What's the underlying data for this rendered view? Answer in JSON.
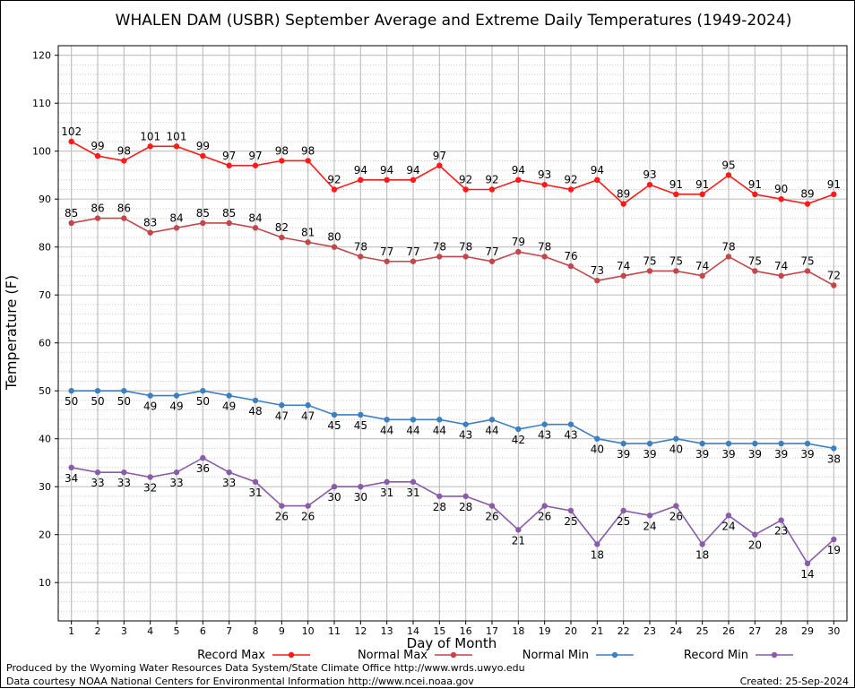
{
  "chart_data": {
    "type": "line",
    "title": "WHALEN DAM (USBR) September Average and Extreme Daily Temperatures (1949-2024)",
    "xlabel": "Day of Month",
    "ylabel": "Temperature (F)",
    "x": [
      1,
      2,
      3,
      4,
      5,
      6,
      7,
      8,
      9,
      10,
      11,
      12,
      13,
      14,
      15,
      16,
      17,
      18,
      19,
      20,
      21,
      22,
      23,
      24,
      25,
      26,
      27,
      28,
      29,
      30
    ],
    "xlim": [
      0.5,
      30.5
    ],
    "ylim": [
      2,
      122
    ],
    "yticks": [
      10,
      20,
      30,
      40,
      50,
      60,
      70,
      80,
      90,
      100,
      110,
      120
    ],
    "grid": true,
    "legend_position": "bottom",
    "series": [
      {
        "name": "Record Max",
        "color": "#ff1a1a",
        "label_pos": "above",
        "values": [
          102,
          99,
          98,
          101,
          101,
          99,
          97,
          97,
          98,
          98,
          92,
          94,
          94,
          94,
          97,
          92,
          92,
          94,
          93,
          92,
          94,
          89,
          93,
          91,
          91,
          95,
          91,
          90,
          89,
          91
        ]
      },
      {
        "name": "Normal Max",
        "color": "#c1474a",
        "label_pos": "above",
        "values": [
          85,
          86,
          86,
          83,
          84,
          85,
          85,
          84,
          82,
          81,
          80,
          78,
          77,
          77,
          78,
          78,
          77,
          79,
          78,
          76,
          73,
          74,
          75,
          75,
          74,
          78,
          75,
          74,
          75,
          72
        ]
      },
      {
        "name": "Normal Min",
        "color": "#3e7fbf",
        "label_pos": "below",
        "values": [
          50,
          50,
          50,
          49,
          49,
          50,
          49,
          48,
          47,
          47,
          45,
          45,
          44,
          44,
          44,
          43,
          44,
          42,
          43,
          43,
          40,
          39,
          39,
          40,
          39,
          39,
          39,
          39,
          39,
          38
        ]
      },
      {
        "name": "Record Min",
        "color": "#8a5ba8",
        "label_pos": "below",
        "values": [
          34,
          33,
          33,
          32,
          33,
          36,
          33,
          31,
          26,
          26,
          30,
          30,
          31,
          31,
          28,
          28,
          26,
          21,
          26,
          25,
          18,
          25,
          24,
          26,
          18,
          24,
          20,
          23,
          14,
          19
        ]
      }
    ]
  },
  "footer": {
    "produced_by": "Produced by the Wyoming Water Resources Data System/State Climate Office http://www.wrds.uwyo.edu",
    "courtesy": "Data courtesy NOAA National Centers for Environmental Information http://www.ncei.noaa.gov",
    "created": "Created: 25-Sep-2024"
  }
}
